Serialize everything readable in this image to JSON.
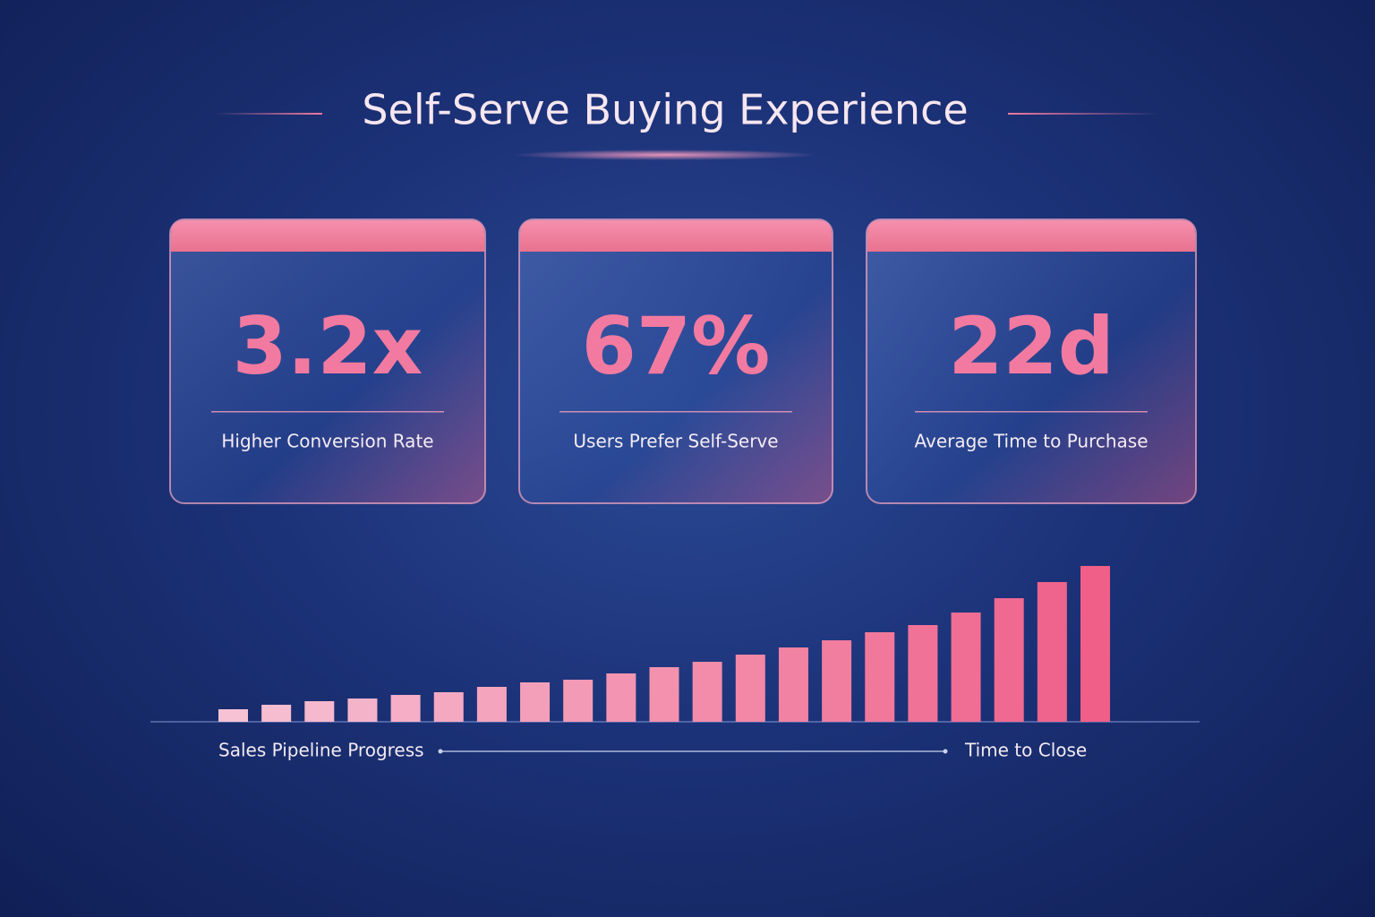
{
  "title": "Self-Serve Buying Experience",
  "cards": [
    {
      "value": "3.2x",
      "label": "Higher Conversion Rate"
    },
    {
      "value": "67%",
      "label": "Users Prefer Self-Serve"
    },
    {
      "value": "22d",
      "label": "Average Time to Purchase"
    }
  ],
  "chart_data": {
    "type": "bar",
    "values": [
      14,
      19,
      23,
      26,
      30,
      33,
      39,
      44,
      47,
      54,
      61,
      67,
      75,
      83,
      91,
      100,
      108,
      122,
      138,
      156,
      174
    ],
    "colors": [
      "#f6c2d4",
      "#ef5f88"
    ],
    "xlabel_start": "Sales Pipeline Progress",
    "xlabel_end": "Time to Close"
  }
}
